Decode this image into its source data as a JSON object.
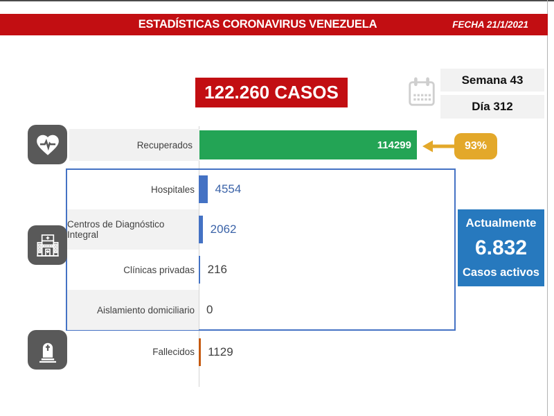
{
  "banner": {
    "title": "ESTADÍSTICAS CORONAVIRUS VENEZUELA",
    "date_label": "FECHA 21/1/2021"
  },
  "totals": {
    "cases": "122.260 CASOS",
    "week": "Semana 43",
    "day": "Día 312"
  },
  "recovered": {
    "label": "Recuperados",
    "value": "114299",
    "percent": "93%"
  },
  "breakdown": {
    "rows": [
      {
        "label": "Hospitales",
        "value": "4554"
      },
      {
        "label": "Centros de Diagnóstico Integral",
        "value": "2062"
      },
      {
        "label": "Clínicas privadas",
        "value": "216"
      },
      {
        "label": "Aislamiento domiciliario",
        "value": "0"
      }
    ]
  },
  "active": {
    "heading": "Actualmente",
    "value": "6.832",
    "caption": "Casos activos"
  },
  "deceased": {
    "label": "Fallecidos",
    "value": "1129"
  },
  "icons": {
    "heart": "heart-pulse-icon",
    "hospital": "hospital-icon",
    "tombstone": "tombstone-icon",
    "calendar": "calendar-icon",
    "arrow": "arrow-left-icon"
  },
  "colors": {
    "banner_red": "#C20E12",
    "bar_green": "#23A455",
    "bar_blue": "#4472C4",
    "bar_orange": "#C55A11",
    "gold": "#E3A82A",
    "active_blue": "#2779BE",
    "icon_gray": "#595959",
    "band_gray": "#F2F2F2",
    "value_blue": "#3B63A8",
    "box_border_blue": "#4472C4"
  },
  "chart_data": {
    "type": "bar",
    "orientation": "horizontal",
    "title": "122.260 CASOS",
    "categories": [
      "Recuperados",
      "Hospitales",
      "Centros de Diagnóstico Integral",
      "Clínicas privadas",
      "Aislamiento domiciliario",
      "Fallecidos"
    ],
    "values": [
      114299,
      4554,
      2062,
      216,
      0,
      1129
    ],
    "colors": [
      "#23A455",
      "#4472C4",
      "#4472C4",
      "#4472C4",
      "#4472C4",
      "#C55A11"
    ],
    "xlim": [
      0,
      114299
    ],
    "legend": "none",
    "grid": "off",
    "annotations": {
      "recovered_percent": "93%",
      "active_cases": "6.832",
      "week": "Semana 43",
      "day": "Día 312",
      "date": "21/1/2021"
    }
  }
}
